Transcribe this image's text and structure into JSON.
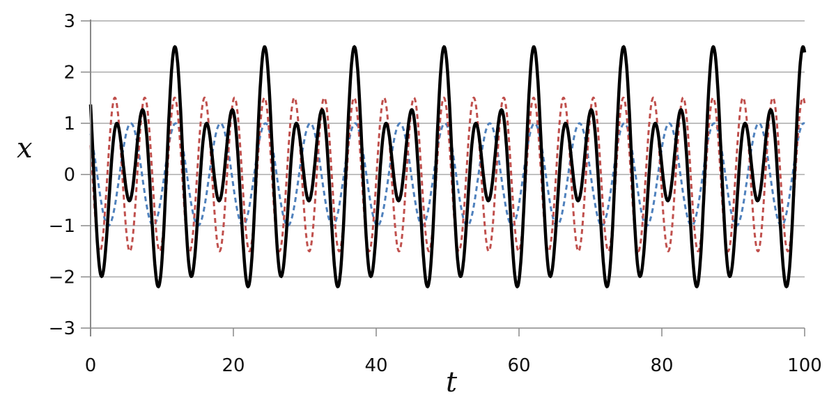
{
  "chart_data": {
    "type": "line",
    "title": "",
    "xlabel": "t",
    "ylabel": "x",
    "xlim": [
      0,
      100
    ],
    "ylim": [
      -3,
      3
    ],
    "xticks": [
      "0",
      "20",
      "40",
      "60",
      "80",
      "100"
    ],
    "xtick_values": [
      0,
      20,
      40,
      60,
      80,
      100
    ],
    "yticks": [
      "−3",
      "−2",
      "−1",
      "0",
      "1",
      "2",
      "3"
    ],
    "ytick_values": [
      -3,
      -2,
      -1,
      0,
      1,
      2,
      3
    ],
    "grid": "horizontal",
    "series": [
      {
        "style": "dashed",
        "color": "#4f81bd",
        "formula": "cos(t + 0.65)",
        "amplitude": 1,
        "angular_frequency": 1,
        "phase": 0.65
      },
      {
        "style": "dashed",
        "color": "#c0504d",
        "formula": "1.5 cos(1.5 t + 1.18)",
        "amplitude": 1.5,
        "angular_frequency": 1.5,
        "phase": 1.18
      },
      {
        "style": "solid",
        "color": "#000000",
        "formula": "sum of the two dashed curves",
        "components": [
          0,
          1
        ]
      }
    ]
  }
}
